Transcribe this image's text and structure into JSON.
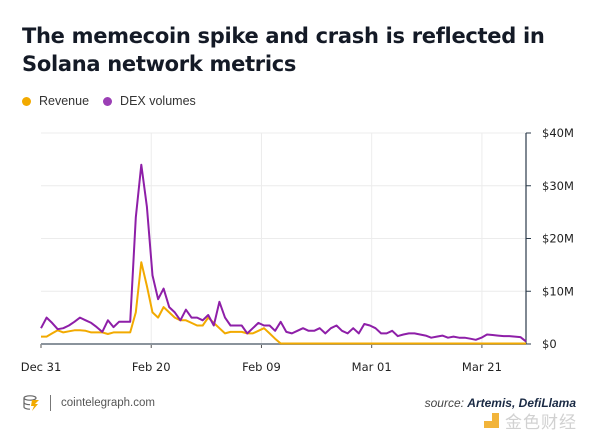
{
  "title": "The memecoin spike and crash is reflected in Solana network metrics",
  "legend": [
    {
      "label": "Revenue",
      "color": "#f2aa00"
    },
    {
      "label": "DEX volumes",
      "color": "#8e1fa8"
    }
  ],
  "footer": {
    "site": "cointelegraph.com",
    "source_prefix": "source:",
    "source_names": "Artemis, DefiLlama",
    "watermark": "金色财经"
  },
  "chart_data": {
    "type": "line",
    "title": "The memecoin spike and crash is reflected in Solana network metrics",
    "xlabel": "",
    "ylabel": "",
    "ylim": [
      0,
      40
    ],
    "y_unit": "$M",
    "y_ticks": [
      "$0",
      "$10M",
      "$20M",
      "$30M",
      "$40M"
    ],
    "y_tick_values": [
      0,
      10,
      20,
      30,
      40
    ],
    "x_tick_labels": [
      "Dec 31",
      "Feb 20",
      "Feb 09",
      "Mar 01",
      "Mar 21"
    ],
    "x_tick_index": [
      0,
      20,
      40,
      60,
      80
    ],
    "grid": true,
    "legend_position": "top-left",
    "y_axis_side": "right",
    "series": [
      {
        "name": "Revenue",
        "color": "#f2aa00",
        "values": [
          1.4,
          1.4,
          2,
          2.6,
          2.2,
          2.4,
          2.6,
          2.6,
          2.5,
          2.2,
          2.2,
          2.2,
          1.9,
          2.2,
          2.2,
          2.2,
          2.2,
          6,
          15.5,
          11,
          6,
          5,
          7,
          6,
          5,
          4.5,
          4.5,
          4,
          3.5,
          3.5,
          5,
          4,
          3,
          2,
          2.3,
          2.3,
          2.3,
          2,
          2,
          2.5,
          3,
          2,
          1,
          0.1,
          0.1,
          0.1,
          0.1,
          0.1,
          0.1,
          0.1,
          0.1,
          0.1,
          0.1,
          0.1,
          0.1,
          0.1,
          0.1,
          0.1,
          0.1,
          0.1,
          0.1,
          0.1,
          0.1,
          0.1,
          0.1,
          0.1,
          0.1,
          0.1,
          0.1,
          0.1,
          0.1,
          0.1,
          0.1,
          0.1,
          0.1,
          0.1,
          0.1,
          0.1,
          0.1,
          0.1,
          0.1,
          0.1,
          0.1,
          0.1,
          0.1,
          0.1,
          0.1,
          0.1
        ]
      },
      {
        "name": "DEX volumes",
        "color": "#8e1fa8",
        "values": [
          3,
          5,
          4,
          2.8,
          3,
          3.5,
          4.2,
          5,
          4.5,
          4,
          3.2,
          2.3,
          4.5,
          3.2,
          4.2,
          4.2,
          4.2,
          24,
          34,
          26,
          13,
          8.5,
          10.5,
          7,
          6,
          4.5,
          6.5,
          5,
          5,
          4.5,
          5.5,
          3.5,
          8,
          5,
          3.5,
          3.5,
          3.5,
          2,
          3,
          4,
          3.5,
          3.5,
          2.5,
          4.2,
          2.3,
          2,
          2.5,
          3,
          2.5,
          2.5,
          3,
          2,
          3,
          3.5,
          2.5,
          2,
          3,
          2,
          3.8,
          3.5,
          3,
          2,
          2,
          2.5,
          1.5,
          1.8,
          2,
          2,
          1.8,
          1.6,
          1.2,
          1.4,
          1.6,
          1.2,
          1.4,
          1.2,
          1.2,
          1,
          0.8,
          1.2,
          1.8,
          1.7,
          1.6,
          1.5,
          1.5,
          1.4,
          1.3,
          0.5
        ]
      }
    ]
  }
}
